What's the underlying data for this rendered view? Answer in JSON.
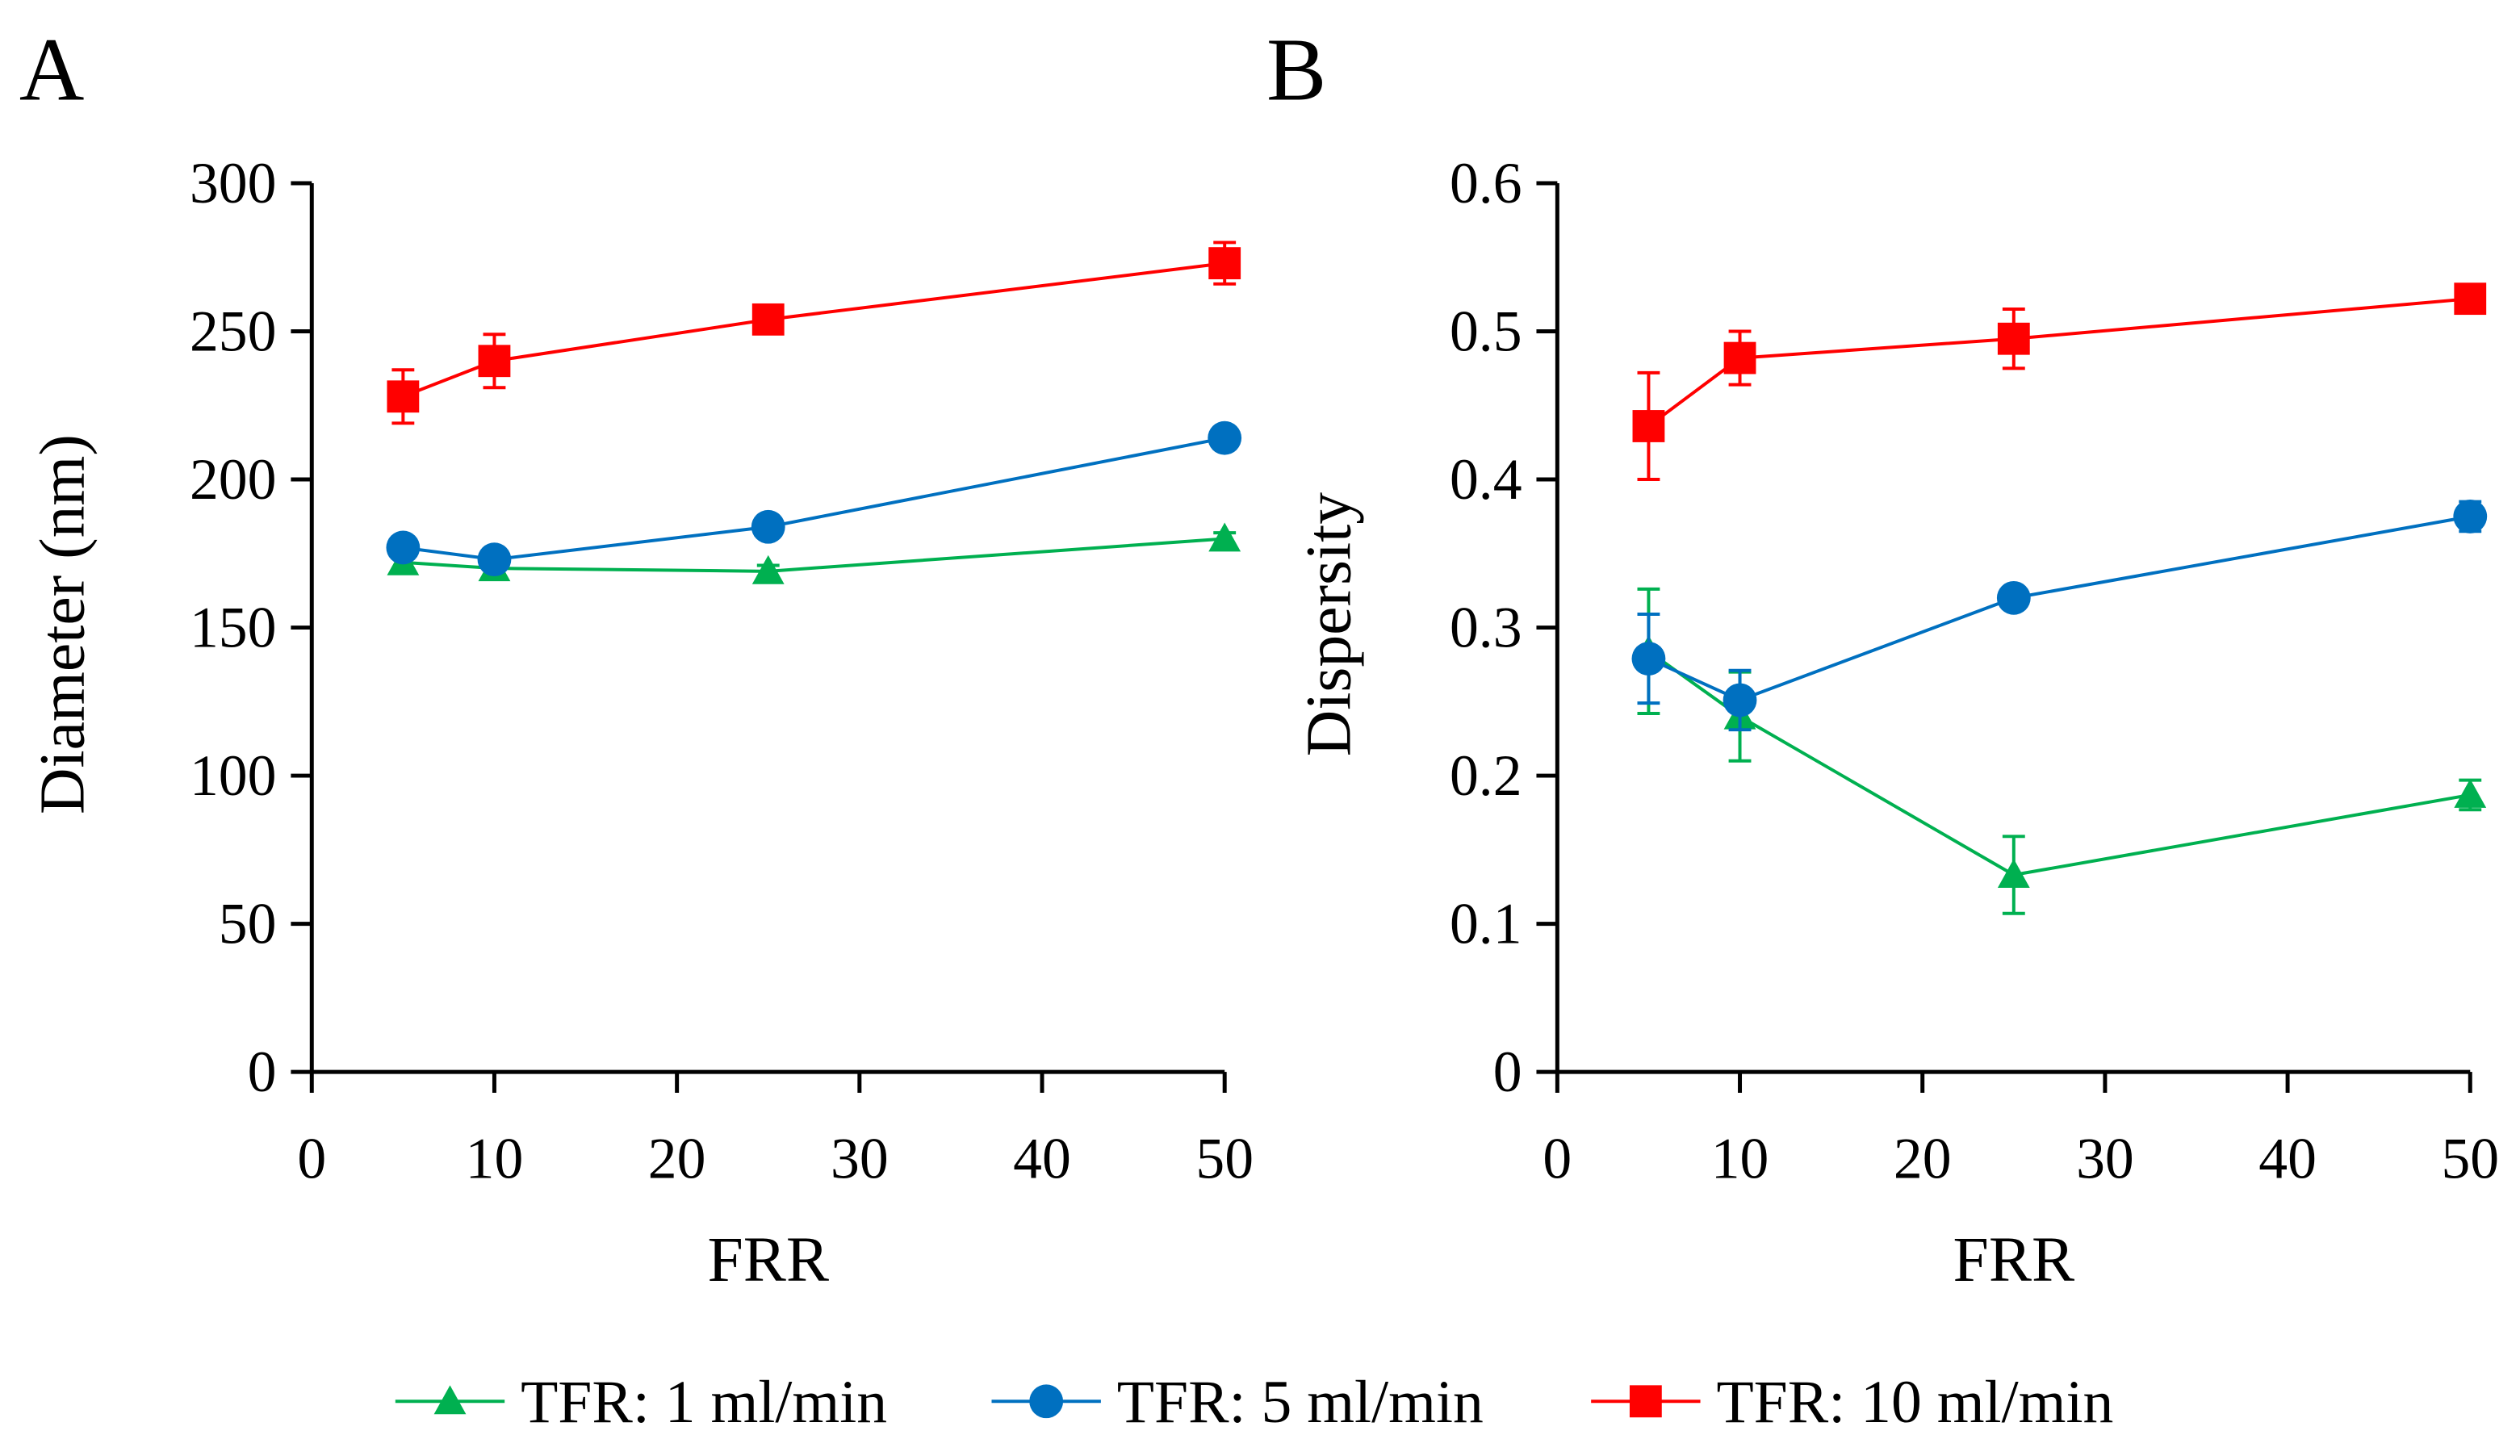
{
  "chart_data": [
    {
      "panel_label": "A",
      "type": "line",
      "xlabel": "FRR",
      "ylabel": "Diameter (nm)",
      "xlim": [
        0,
        50
      ],
      "ylim": [
        0,
        300
      ],
      "xticks": [
        0,
        10,
        20,
        30,
        40,
        50
      ],
      "yticks": [
        0,
        50,
        100,
        150,
        200,
        250,
        300
      ],
      "x": [
        5,
        10,
        25,
        50
      ],
      "series": [
        {
          "name": "TFR: 1 ml/min",
          "color": "#00b050",
          "marker": "triangle",
          "values": [
            172,
            170,
            169,
            180
          ],
          "errors": [
            3,
            2,
            2,
            2
          ]
        },
        {
          "name": "TFR: 5 ml/min",
          "color": "#0070c0",
          "marker": "circle",
          "values": [
            177,
            173,
            184,
            214
          ],
          "errors": [
            2,
            2,
            2,
            2
          ]
        },
        {
          "name": "TFR: 10 ml/min",
          "color": "#ff0000",
          "marker": "square",
          "values": [
            228,
            240,
            254,
            273
          ],
          "errors": [
            9,
            9,
            3,
            7
          ]
        }
      ]
    },
    {
      "panel_label": "B",
      "type": "line",
      "xlabel": "FRR",
      "ylabel": "Dispersity",
      "xlim": [
        0,
        50
      ],
      "ylim": [
        0,
        0.6
      ],
      "xticks": [
        0,
        10,
        20,
        30,
        40,
        50
      ],
      "yticks": [
        0,
        0.1,
        0.2,
        0.3,
        0.4,
        0.5,
        0.6
      ],
      "x": [
        5,
        10,
        25,
        50
      ],
      "series": [
        {
          "name": "TFR: 1 ml/min",
          "color": "#00b050",
          "marker": "triangle",
          "values": [
            0.284,
            0.24,
            0.133,
            0.187
          ],
          "errors": [
            0.042,
            0.03,
            0.026,
            0.01
          ]
        },
        {
          "name": "TFR: 5 ml/min",
          "color": "#0070c0",
          "marker": "circle",
          "values": [
            0.279,
            0.251,
            0.32,
            0.375
          ],
          "errors": [
            0.03,
            0.02,
            0.005,
            0.01
          ]
        },
        {
          "name": "TFR: 10 ml/min",
          "color": "#ff0000",
          "marker": "square",
          "values": [
            0.436,
            0.482,
            0.495,
            0.522
          ],
          "errors": [
            0.036,
            0.018,
            0.02,
            0.006
          ]
        }
      ]
    }
  ],
  "legend": {
    "placement": "bottom-center",
    "items": [
      "TFR: 1 ml/min",
      "TFR: 5 ml/min",
      "TFR: 10 ml/min"
    ]
  }
}
